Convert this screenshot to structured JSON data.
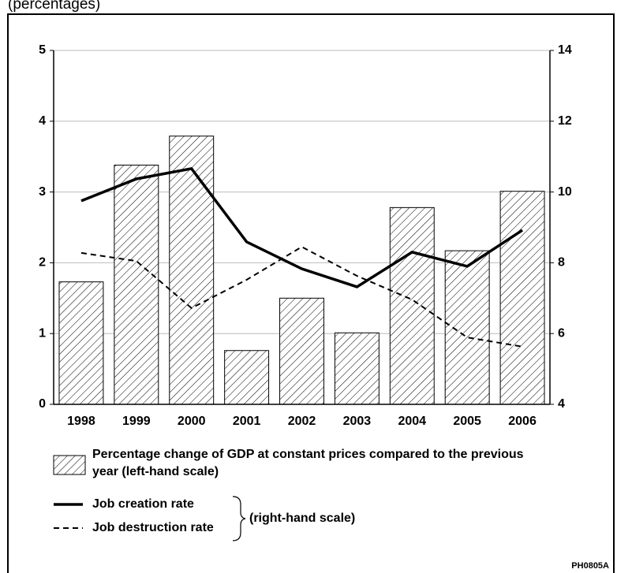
{
  "chart_data": {
    "type": "bar",
    "title": "(percentages)",
    "code": "PH0805A",
    "right_scale_note": "(right-hand scale)",
    "categories": [
      "1998",
      "1999",
      "2000",
      "2001",
      "2002",
      "2003",
      "2004",
      "2005",
      "2006"
    ],
    "series": [
      {
        "name": "Percentage change of GDP at constant prices compared to the previous year (left-hand scale)",
        "type": "bar",
        "axis": "y",
        "color": "#000000",
        "hatch": true,
        "values": [
          1.73,
          3.38,
          3.79,
          0.76,
          1.5,
          1.01,
          2.78,
          2.17,
          3.01
        ]
      },
      {
        "name": "Job creation rate",
        "type": "line",
        "axis": "y2",
        "color": "#000000",
        "line_style": "solid",
        "values": [
          9.75,
          10.37,
          10.66,
          8.59,
          7.83,
          7.32,
          8.3,
          7.9,
          8.92
        ]
      },
      {
        "name": "Job destruction rate",
        "type": "line",
        "axis": "y2",
        "color": "#000000",
        "line_style": "dashed",
        "values": [
          8.28,
          8.05,
          6.72,
          7.52,
          8.45,
          7.63,
          6.96,
          5.89,
          5.63
        ]
      }
    ],
    "ylim": [
      0,
      5
    ],
    "yticks": [
      0,
      1,
      2,
      3,
      4,
      5
    ],
    "y2lim": [
      4,
      14
    ],
    "y2ticks": [
      4,
      6,
      8,
      10,
      12,
      14
    ],
    "grid": true
  }
}
